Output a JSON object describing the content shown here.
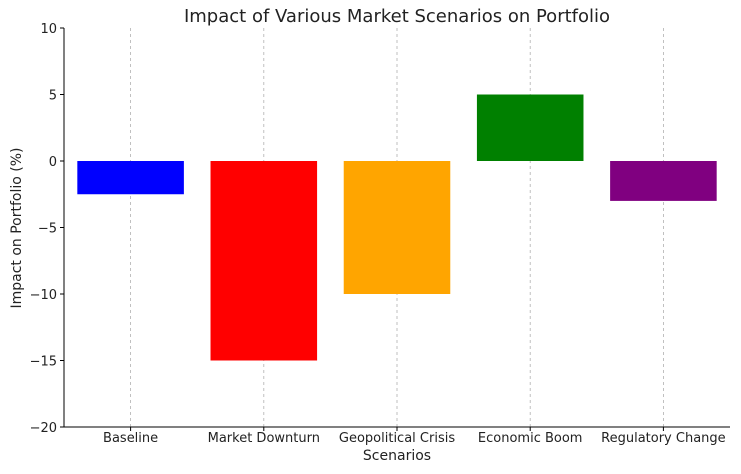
{
  "chart_data": {
    "type": "bar",
    "title": "Impact of Various Market Scenarios on Portfolio",
    "xlabel": "Scenarios",
    "ylabel": "Impact on Portfolio (%)",
    "categories": [
      "Baseline",
      "Market Downturn",
      "Geopolitical Crisis",
      "Economic Boom",
      "Regulatory Change"
    ],
    "values": [
      -2.5,
      -15,
      -10,
      5,
      -3
    ],
    "colors": [
      "#0000ff",
      "#ff0000",
      "#ffa500",
      "#008000",
      "#800080"
    ],
    "ylim": [
      -20,
      10
    ],
    "yticks": [
      10,
      5,
      0,
      -5,
      -10,
      -15,
      -20
    ],
    "ytick_labels": [
      "10",
      "5",
      "0",
      "−5",
      "−10",
      "−15",
      "−20"
    ],
    "grid": "x-dashed"
  }
}
